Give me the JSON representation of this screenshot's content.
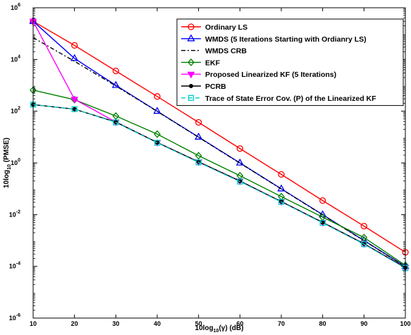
{
  "chart_data": {
    "type": "line",
    "title": "",
    "xlabel": {
      "base": "10log",
      "sub": "10",
      "rest": "(γ) (dB)"
    },
    "ylabel": {
      "base": "10log",
      "sub": "10",
      "rest": " (PMSE)"
    },
    "xlim": [
      10,
      100
    ],
    "ylim_exp": [
      -6,
      6
    ],
    "y_scale": "log",
    "grid": false,
    "legend_position": "top-right",
    "x_ticks": [
      "10",
      "20",
      "30",
      "40",
      "50",
      "60",
      "70",
      "80",
      "90",
      "100"
    ],
    "y_ticks": [
      {
        "base": "10",
        "exp": "6"
      },
      {
        "base": "10",
        "exp": "4"
      },
      {
        "base": "10",
        "exp": "2"
      },
      {
        "base": "10",
        "exp": "0"
      },
      {
        "base": "10",
        "exp": "-2"
      },
      {
        "base": "10",
        "exp": "-4"
      },
      {
        "base": "10",
        "exp": "-6"
      }
    ],
    "x": [
      10,
      20,
      30,
      40,
      50,
      60,
      70,
      80,
      90,
      100
    ],
    "series": [
      {
        "name": "Ordinary LS",
        "color": "#ff0000",
        "marker": "circle",
        "dash": "",
        "values": [
          300000,
          35000,
          3600,
          370,
          37,
          3.6,
          0.36,
          0.035,
          0.0036,
          0.00035
        ]
      },
      {
        "name": "WMDS (5 Iterations Starting with Ordianry LS)",
        "color": "#0000ff",
        "marker": "triangle-up",
        "dash": "",
        "values": [
          300000,
          11000,
          1000,
          100,
          10,
          1.0,
          0.1,
          0.01,
          0.001,
          0.0001
        ]
      },
      {
        "name": "WMDS CRB",
        "color": "#000000",
        "marker": "none",
        "dash": "6,3,2,3",
        "values": [
          70000,
          8500,
          950,
          98,
          9.8,
          0.98,
          0.098,
          0.0098,
          0.00098,
          9.8e-05
        ]
      },
      {
        "name": "EKF",
        "color": "#008000",
        "marker": "diamond",
        "dash": "",
        "values": [
          650,
          280,
          65,
          13,
          1.9,
          0.32,
          0.05,
          0.008,
          0.0013,
          0.00011
        ]
      },
      {
        "name": "Proposed Linearized KF (5 Iterations)",
        "color": "#ff00ff",
        "marker": "triangle-down",
        "dash": "",
        "values": [
          300000,
          290,
          38,
          6.2,
          1.1,
          0.2,
          0.032,
          0.005,
          0.00075,
          9e-05
        ]
      },
      {
        "name": "PCRB",
        "color": "#000000",
        "marker": "dot",
        "dash": "",
        "values": [
          180,
          120,
          38,
          6.2,
          1.1,
          0.2,
          0.032,
          0.005,
          0.00075,
          9e-05
        ]
      },
      {
        "name": "Trace of State Error Cov. (P) of the Linearized KF",
        "color": "#00cccc",
        "marker": "square",
        "dash": "6,4",
        "values": [
          180,
          120,
          37,
          6.0,
          1.05,
          0.19,
          0.031,
          0.0048,
          0.00072,
          8.5e-05
        ]
      }
    ]
  }
}
